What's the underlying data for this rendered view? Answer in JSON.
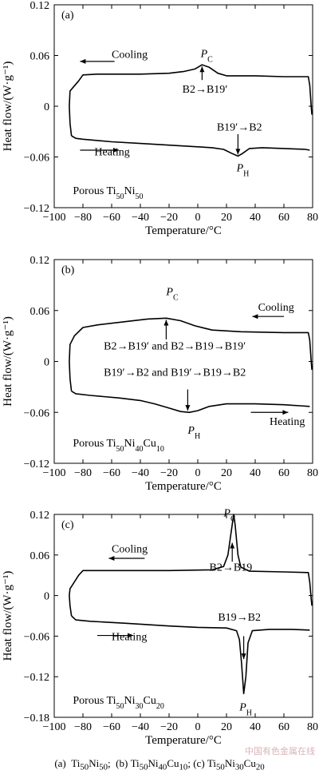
{
  "caption": {
    "a_label": "(a)",
    "a_base": "Ti",
    "a_s1": "50",
    "a_e2": "Ni",
    "a_s2": "50",
    "a_sep": ";",
    "b_label": "(b)",
    "b_base": "Ti",
    "b_s1": "50",
    "b_e2": "Ni",
    "b_s2": "40",
    "b_e3": "Cu",
    "b_s3": "10",
    "b_sep": ";",
    "c_label": "(c)",
    "c_base": "Ti",
    "c_s1": "50",
    "c_e2": "Ni",
    "c_s2": "30",
    "c_e3": "Cu",
    "c_s3": "20"
  },
  "watermark": "中国有色金属在线",
  "chart_data": [
    {
      "type": "line",
      "panel_label": "(a)",
      "xlabel": "Temperature/°C",
      "ylabel": "Heat flow/(W·g⁻¹)",
      "xlim": [
        -100,
        80
      ],
      "ylim": [
        -0.12,
        0.12
      ],
      "xticks": [
        -100,
        -80,
        -60,
        -40,
        -20,
        0,
        20,
        40,
        60,
        80
      ],
      "yticks": [
        -0.12,
        -0.06,
        0,
        0.06,
        0.12
      ],
      "yticklabels": [
        "−0.12",
        "−0.06",
        "0",
        "0.06",
        "0.12"
      ],
      "xticklabels": [
        "−100",
        "−80",
        "−60",
        "−40",
        "−20",
        "0",
        "20",
        "40",
        "60",
        "80"
      ],
      "series": [
        {
          "values": [
            [
              -88,
              -0.035
            ],
            [
              -89,
              -0.02
            ],
            [
              -89.5,
              0.0
            ],
            [
              -89,
              0.018
            ],
            [
              -87,
              0.022
            ],
            [
              -83,
              0.03
            ],
            [
              -80,
              0.037
            ],
            [
              -70,
              0.038
            ],
            [
              -40,
              0.038
            ],
            [
              -20,
              0.039
            ],
            [
              -10,
              0.041
            ],
            [
              -2,
              0.044
            ],
            [
              3,
              0.049
            ],
            [
              8,
              0.046
            ],
            [
              14,
              0.039
            ],
            [
              20,
              0.036
            ],
            [
              40,
              0.036
            ],
            [
              60,
              0.035
            ],
            [
              77,
              0.035
            ],
            [
              78,
              0.025
            ],
            [
              79,
              0.0
            ],
            [
              79.5,
              -0.01
            ]
          ]
        },
        {
          "values": [
            [
              -88,
              -0.035
            ],
            [
              -85,
              -0.038
            ],
            [
              -80,
              -0.039
            ],
            [
              -60,
              -0.042
            ],
            [
              -40,
              -0.044
            ],
            [
              -20,
              -0.046
            ],
            [
              0,
              -0.048
            ],
            [
              10,
              -0.049
            ],
            [
              18,
              -0.051
            ],
            [
              24,
              -0.056
            ],
            [
              28,
              -0.059
            ],
            [
              31,
              -0.056
            ],
            [
              36,
              -0.05
            ],
            [
              45,
              -0.049
            ],
            [
              60,
              -0.05
            ],
            [
              75,
              -0.051
            ],
            [
              78,
              -0.052
            ]
          ]
        }
      ],
      "annotations": {
        "cooling": "Cooling",
        "heating": "Heating",
        "pc": "P",
        "pc_sub": "C",
        "ph": "P",
        "ph_sub": "H",
        "trans_cool": "B2→B19′",
        "trans_heat": "B19′→B2",
        "sample_prefix": "Porous Ti",
        "s1": "50",
        "e2": "Ni",
        "s2": "50"
      }
    },
    {
      "type": "line",
      "panel_label": "(b)",
      "xlabel": "Temperature/°C",
      "ylabel": "Heat flow/(W·g⁻¹)",
      "xlim": [
        -100,
        80
      ],
      "ylim": [
        -0.12,
        0.12
      ],
      "xticks": [
        -100,
        -80,
        -60,
        -40,
        -20,
        0,
        20,
        40,
        60,
        80
      ],
      "yticks": [
        -0.12,
        -0.06,
        0,
        0.06,
        0.12
      ],
      "yticklabels": [
        "−0.12",
        "−0.06",
        "0",
        "0.06",
        "0.12"
      ],
      "xticklabels": [
        "−100",
        "−80",
        "−60",
        "−40",
        "−20",
        "0",
        "20",
        "40",
        "60",
        "80"
      ],
      "series": [
        {
          "values": [
            [
              -88,
              -0.035
            ],
            [
              -89,
              -0.02
            ],
            [
              -89.5,
              0.0
            ],
            [
              -89,
              0.02
            ],
            [
              -86,
              0.03
            ],
            [
              -80,
              0.04
            ],
            [
              -70,
              0.043
            ],
            [
              -50,
              0.047
            ],
            [
              -35,
              0.05
            ],
            [
              -22,
              0.051
            ],
            [
              -12,
              0.048
            ],
            [
              -2,
              0.042
            ],
            [
              10,
              0.037
            ],
            [
              30,
              0.035
            ],
            [
              60,
              0.034
            ],
            [
              77,
              0.034
            ],
            [
              78,
              0.025
            ],
            [
              79,
              0.0
            ],
            [
              79.5,
              -0.01
            ]
          ]
        },
        {
          "values": [
            [
              -88,
              -0.035
            ],
            [
              -85,
              -0.038
            ],
            [
              -75,
              -0.04
            ],
            [
              -55,
              -0.043
            ],
            [
              -40,
              -0.046
            ],
            [
              -30,
              -0.05
            ],
            [
              -20,
              -0.055
            ],
            [
              -12,
              -0.059
            ],
            [
              -6,
              -0.06
            ],
            [
              0,
              -0.058
            ],
            [
              8,
              -0.053
            ],
            [
              20,
              -0.05
            ],
            [
              40,
              -0.05
            ],
            [
              60,
              -0.051
            ],
            [
              78,
              -0.053
            ]
          ]
        }
      ],
      "annotations": {
        "cooling": "Cooling",
        "heating": "Heating",
        "pc": "P",
        "pc_sub": "C",
        "ph": "P",
        "ph_sub": "H",
        "trans_cool": "B2→B19′ and B2→B19→B19′",
        "trans_heat": "B19′→B2 and B19′→B19→B2",
        "sample_prefix": "Porous Ti",
        "s1": "50",
        "e2": "Ni",
        "s2": "40",
        "e3": "Cu",
        "s3": "10"
      }
    },
    {
      "type": "line",
      "panel_label": "(c)",
      "xlabel": "Temperature/°C",
      "ylabel": "Heat flow/(W·g⁻¹)",
      "xlim": [
        -100,
        80
      ],
      "ylim": [
        -0.18,
        0.12
      ],
      "xticks": [
        -100,
        -80,
        -60,
        -40,
        -20,
        0,
        20,
        40,
        60,
        80
      ],
      "yticks": [
        -0.18,
        -0.12,
        -0.06,
        0,
        0.06,
        0.12
      ],
      "yticklabels": [
        "−0.18",
        "−0.12",
        "−0.06",
        "0",
        "0.06",
        "0.12"
      ],
      "xticklabels": [
        "−100",
        "−80",
        "−60",
        "−40",
        "−20",
        "0",
        "20",
        "40",
        "60",
        "80"
      ],
      "series": [
        {
          "values": [
            [
              -88,
              -0.03
            ],
            [
              -89,
              -0.015
            ],
            [
              -89.5,
              0.0
            ],
            [
              -89,
              0.01
            ],
            [
              -86,
              0.02
            ],
            [
              -83,
              0.03
            ],
            [
              -80,
              0.037
            ],
            [
              -60,
              0.037
            ],
            [
              -20,
              0.037
            ],
            [
              10,
              0.038
            ],
            [
              18,
              0.043
            ],
            [
              21,
              0.06
            ],
            [
              23,
              0.09
            ],
            [
              25,
              0.12
            ],
            [
              26,
              0.105
            ],
            [
              28,
              0.06
            ],
            [
              30,
              0.042
            ],
            [
              36,
              0.036
            ],
            [
              60,
              0.035
            ],
            [
              77,
              0.034
            ],
            [
              78,
              0.02
            ],
            [
              79,
              -0.005
            ],
            [
              79.5,
              -0.015
            ]
          ]
        },
        {
          "values": [
            [
              -88,
              -0.03
            ],
            [
              -85,
              -0.036
            ],
            [
              -75,
              -0.038
            ],
            [
              -50,
              -0.041
            ],
            [
              -20,
              -0.045
            ],
            [
              0,
              -0.047
            ],
            [
              20,
              -0.048
            ],
            [
              27,
              -0.052
            ],
            [
              29,
              -0.065
            ],
            [
              30.5,
              -0.1
            ],
            [
              32,
              -0.145
            ],
            [
              33.5,
              -0.12
            ],
            [
              35,
              -0.07
            ],
            [
              38,
              -0.052
            ],
            [
              50,
              -0.05
            ],
            [
              65,
              -0.05
            ],
            [
              78,
              -0.051
            ]
          ]
        }
      ],
      "annotations": {
        "cooling": "Cooling",
        "heating": "Heating",
        "pc": "P",
        "pc_sub": "C",
        "ph": "P",
        "ph_sub": "H",
        "trans_cool": "B2→B19",
        "trans_heat": "B19→B2",
        "sample_prefix": "Porous Ti",
        "s1": "50",
        "e2": "Ni",
        "s2": "30",
        "e3": "Cu",
        "s3": "20"
      }
    }
  ]
}
